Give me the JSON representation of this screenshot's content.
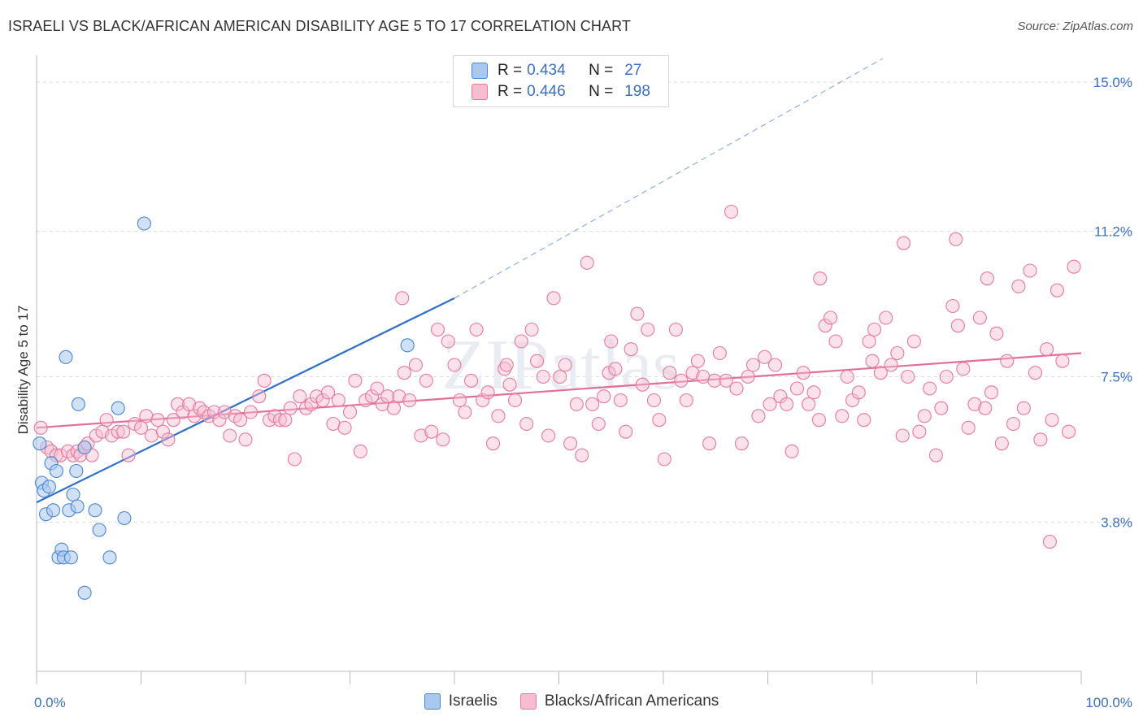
{
  "title": "ISRAELI VS BLACK/AFRICAN AMERICAN DISABILITY AGE 5 TO 17 CORRELATION CHART",
  "source": "Source: ZipAtlas.com",
  "watermark": "ZIPatlas",
  "colors": {
    "israeli_fill": "#aac8ef",
    "israeli_stroke": "#4b86d6",
    "israeli_line": "#2f6fcc",
    "black_fill": "#f7bcd0",
    "black_stroke": "#e8799f",
    "black_line": "#e0709a",
    "axis_label": "#3a6fc4",
    "grid": "#dddddd"
  },
  "legend": {
    "rows": [
      {
        "r_label": "R =",
        "r_value": "0.434",
        "n_label": "N =",
        "n_value": "27"
      },
      {
        "r_label": "R =",
        "r_value": "0.446",
        "n_label": "N =",
        "n_value": "198"
      }
    ]
  },
  "bottom_legend": [
    "Israelis",
    "Blacks/African Americans"
  ],
  "chart_data": {
    "type": "scatter",
    "title": "ISRAELI VS BLACK/AFRICAN AMERICAN DISABILITY AGE 5 TO 17 CORRELATION CHART",
    "xlabel": "",
    "ylabel": "Disability Age 5 to 17",
    "xlim": [
      0,
      100
    ],
    "ylim": [
      0,
      15.6
    ],
    "x_tick_labels": [
      "0.0%",
      "100.0%"
    ],
    "y_ticks": [
      3.8,
      7.5,
      11.2,
      15.0
    ],
    "y_tick_labels": [
      "3.8%",
      "7.5%",
      "11.2%",
      "15.0%"
    ],
    "grid": true,
    "legend_position": "top-center",
    "series": [
      {
        "name": "Israelis",
        "r": 0.434,
        "n": 27,
        "trend": {
          "x": [
            0,
            40
          ],
          "y": [
            4.3,
            9.5
          ],
          "dashed_extension_to": [
            81,
            15.6
          ]
        },
        "points": [
          [
            0.3,
            5.8
          ],
          [
            0.5,
            4.8
          ],
          [
            0.7,
            4.6
          ],
          [
            0.9,
            4.0
          ],
          [
            1.2,
            4.7
          ],
          [
            1.4,
            5.3
          ],
          [
            1.6,
            4.1
          ],
          [
            1.9,
            5.1
          ],
          [
            2.1,
            2.9
          ],
          [
            2.4,
            3.1
          ],
          [
            2.6,
            2.9
          ],
          [
            2.8,
            8.0
          ],
          [
            3.1,
            4.1
          ],
          [
            3.3,
            2.9
          ],
          [
            3.5,
            4.5
          ],
          [
            3.8,
            5.1
          ],
          [
            3.9,
            4.2
          ],
          [
            4.0,
            6.8
          ],
          [
            4.6,
            2.0
          ],
          [
            4.6,
            5.7
          ],
          [
            5.6,
            4.1
          ],
          [
            6.0,
            3.6
          ],
          [
            7.0,
            2.9
          ],
          [
            7.8,
            6.7
          ],
          [
            8.4,
            3.9
          ],
          [
            10.3,
            11.4
          ],
          [
            35.5,
            8.3
          ]
        ]
      },
      {
        "name": "Blacks/African Americans",
        "r": 0.446,
        "n": 198,
        "trend": {
          "x": [
            0,
            100
          ],
          "y": [
            6.2,
            8.1
          ]
        },
        "points": [
          [
            0.4,
            6.2
          ],
          [
            1.0,
            5.7
          ],
          [
            1.4,
            5.6
          ],
          [
            1.9,
            5.5
          ],
          [
            2.3,
            5.5
          ],
          [
            3.0,
            5.6
          ],
          [
            3.5,
            5.5
          ],
          [
            3.9,
            5.6
          ],
          [
            4.2,
            5.5
          ],
          [
            4.6,
            5.7
          ],
          [
            4.9,
            5.8
          ],
          [
            5.3,
            5.5
          ],
          [
            5.7,
            6.0
          ],
          [
            6.3,
            6.1
          ],
          [
            6.7,
            6.4
          ],
          [
            7.2,
            6.0
          ],
          [
            7.8,
            6.1
          ],
          [
            8.3,
            6.1
          ],
          [
            8.8,
            5.5
          ],
          [
            9.4,
            6.3
          ],
          [
            10.0,
            6.2
          ],
          [
            10.5,
            6.5
          ],
          [
            11.0,
            6.0
          ],
          [
            11.6,
            6.4
          ],
          [
            12.1,
            6.1
          ],
          [
            12.6,
            5.9
          ],
          [
            13.1,
            6.4
          ],
          [
            13.5,
            6.8
          ],
          [
            14.0,
            6.6
          ],
          [
            14.6,
            6.8
          ],
          [
            15.1,
            6.5
          ],
          [
            15.6,
            6.7
          ],
          [
            16.0,
            6.6
          ],
          [
            16.5,
            6.5
          ],
          [
            17.0,
            6.6
          ],
          [
            17.5,
            6.4
          ],
          [
            18.0,
            6.6
          ],
          [
            18.5,
            6.0
          ],
          [
            19.0,
            6.5
          ],
          [
            19.5,
            6.4
          ],
          [
            20.0,
            5.9
          ],
          [
            20.5,
            6.6
          ],
          [
            21.3,
            7.0
          ],
          [
            21.8,
            7.4
          ],
          [
            22.3,
            6.4
          ],
          [
            22.8,
            6.5
          ],
          [
            23.3,
            6.4
          ],
          [
            23.8,
            6.4
          ],
          [
            24.3,
            6.7
          ],
          [
            24.7,
            5.4
          ],
          [
            25.2,
            7.0
          ],
          [
            25.8,
            6.7
          ],
          [
            26.3,
            6.8
          ],
          [
            26.8,
            7.0
          ],
          [
            27.4,
            6.9
          ],
          [
            27.9,
            7.1
          ],
          [
            28.4,
            6.3
          ],
          [
            28.9,
            6.9
          ],
          [
            29.5,
            6.2
          ],
          [
            30.0,
            6.6
          ],
          [
            30.5,
            7.4
          ],
          [
            31.0,
            5.6
          ],
          [
            31.5,
            6.9
          ],
          [
            32.1,
            7.0
          ],
          [
            32.6,
            7.2
          ],
          [
            33.1,
            6.8
          ],
          [
            33.6,
            7.0
          ],
          [
            34.2,
            6.7
          ],
          [
            34.7,
            7.0
          ],
          [
            35.2,
            7.6
          ],
          [
            35.7,
            6.9
          ],
          [
            36.3,
            7.8
          ],
          [
            36.8,
            6.0
          ],
          [
            37.3,
            7.4
          ],
          [
            37.8,
            6.1
          ],
          [
            38.4,
            8.7
          ],
          [
            38.9,
            5.9
          ],
          [
            39.4,
            8.4
          ],
          [
            40.0,
            7.8
          ],
          [
            40.5,
            6.9
          ],
          [
            41.0,
            6.6
          ],
          [
            41.6,
            7.4
          ],
          [
            42.1,
            8.7
          ],
          [
            42.7,
            6.9
          ],
          [
            43.2,
            7.1
          ],
          [
            43.7,
            5.8
          ],
          [
            44.2,
            6.5
          ],
          [
            44.8,
            7.7
          ],
          [
            45.3,
            7.3
          ],
          [
            45.8,
            6.9
          ],
          [
            46.4,
            8.4
          ],
          [
            46.9,
            6.3
          ],
          [
            47.4,
            8.7
          ],
          [
            47.9,
            7.9
          ],
          [
            48.5,
            7.5
          ],
          [
            49.0,
            6.0
          ],
          [
            49.5,
            9.5
          ],
          [
            50.1,
            7.5
          ],
          [
            50.6,
            7.8
          ],
          [
            51.1,
            5.8
          ],
          [
            51.7,
            6.8
          ],
          [
            52.2,
            5.5
          ],
          [
            52.7,
            10.4
          ],
          [
            53.2,
            6.8
          ],
          [
            53.8,
            6.3
          ],
          [
            54.3,
            7.0
          ],
          [
            54.8,
            7.6
          ],
          [
            55.4,
            7.7
          ],
          [
            55.9,
            6.9
          ],
          [
            56.4,
            6.1
          ],
          [
            56.9,
            8.2
          ],
          [
            57.5,
            9.1
          ],
          [
            58.0,
            7.3
          ],
          [
            58.5,
            8.7
          ],
          [
            59.1,
            6.9
          ],
          [
            59.6,
            6.4
          ],
          [
            60.1,
            5.4
          ],
          [
            60.6,
            7.6
          ],
          [
            61.2,
            8.7
          ],
          [
            61.7,
            7.4
          ],
          [
            62.2,
            6.9
          ],
          [
            62.8,
            7.6
          ],
          [
            63.3,
            7.9
          ],
          [
            63.8,
            7.5
          ],
          [
            64.4,
            5.8
          ],
          [
            64.9,
            7.4
          ],
          [
            65.4,
            8.1
          ],
          [
            66.0,
            7.4
          ],
          [
            66.5,
            11.7
          ],
          [
            67.0,
            7.2
          ],
          [
            67.5,
            5.8
          ],
          [
            68.1,
            7.5
          ],
          [
            68.6,
            7.8
          ],
          [
            69.1,
            6.5
          ],
          [
            69.7,
            8.0
          ],
          [
            70.2,
            6.8
          ],
          [
            70.7,
            7.8
          ],
          [
            71.2,
            7.0
          ],
          [
            71.8,
            6.8
          ],
          [
            72.3,
            5.6
          ],
          [
            72.8,
            7.2
          ],
          [
            73.4,
            7.6
          ],
          [
            73.9,
            6.8
          ],
          [
            74.4,
            7.1
          ],
          [
            74.9,
            6.4
          ],
          [
            75.5,
            8.8
          ],
          [
            76.0,
            9.0
          ],
          [
            76.5,
            8.4
          ],
          [
            77.1,
            6.5
          ],
          [
            77.6,
            7.5
          ],
          [
            78.1,
            6.9
          ],
          [
            78.7,
            7.1
          ],
          [
            79.2,
            6.4
          ],
          [
            79.7,
            8.4
          ],
          [
            80.2,
            8.7
          ],
          [
            80.8,
            7.6
          ],
          [
            81.3,
            9.0
          ],
          [
            81.8,
            7.8
          ],
          [
            82.4,
            8.1
          ],
          [
            82.9,
            6.0
          ],
          [
            83.4,
            7.5
          ],
          [
            84.0,
            8.4
          ],
          [
            84.5,
            6.1
          ],
          [
            85.0,
            6.5
          ],
          [
            85.5,
            7.2
          ],
          [
            86.1,
            5.5
          ],
          [
            86.6,
            6.7
          ],
          [
            87.1,
            7.5
          ],
          [
            87.7,
            9.3
          ],
          [
            88.2,
            8.8
          ],
          [
            88.7,
            7.7
          ],
          [
            89.2,
            6.2
          ],
          [
            89.8,
            6.8
          ],
          [
            90.3,
            9.0
          ],
          [
            90.8,
            6.7
          ],
          [
            91.4,
            7.1
          ],
          [
            91.9,
            8.6
          ],
          [
            92.4,
            5.8
          ],
          [
            92.9,
            7.9
          ],
          [
            93.5,
            6.3
          ],
          [
            94.0,
            9.8
          ],
          [
            94.5,
            6.7
          ],
          [
            95.1,
            10.2
          ],
          [
            95.6,
            7.6
          ],
          [
            96.1,
            5.9
          ],
          [
            96.7,
            8.2
          ],
          [
            97.2,
            6.4
          ],
          [
            97.7,
            9.7
          ],
          [
            98.2,
            7.9
          ],
          [
            98.8,
            6.1
          ],
          [
            99.3,
            10.3
          ],
          [
            35.0,
            9.5
          ],
          [
            45.0,
            7.8
          ],
          [
            55.0,
            8.4
          ],
          [
            75.0,
            10.0
          ],
          [
            83.0,
            10.9
          ],
          [
            88.0,
            11.0
          ],
          [
            91.0,
            10.0
          ],
          [
            97.0,
            3.3
          ],
          [
            80.0,
            7.9
          ]
        ]
      }
    ]
  }
}
